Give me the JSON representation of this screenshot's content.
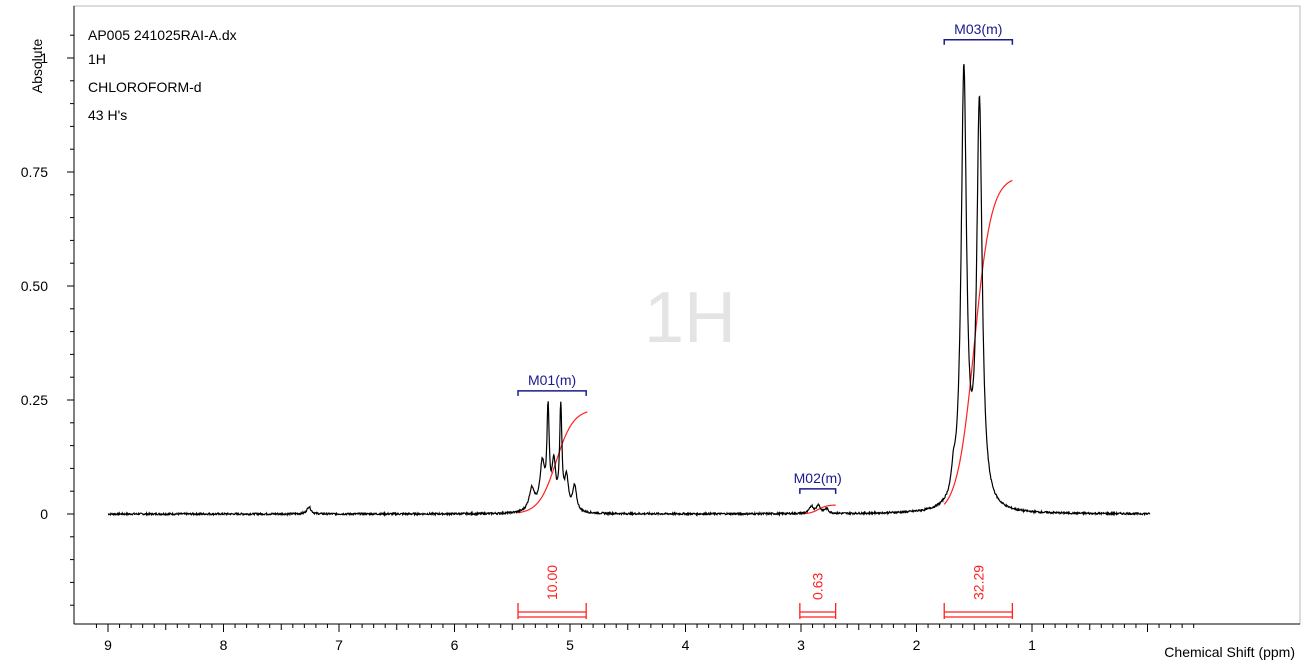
{
  "chart_data": {
    "type": "line",
    "title_lines": [
      "AP005 241025RAI-A.dx",
      "1H",
      "CHLOROFORM-d",
      "43 H's"
    ],
    "watermark": "1H",
    "xlabel": "Chemical Shift (ppm)",
    "ylabel": "Absolute",
    "xlim": [
      9.2,
      -0.3
    ],
    "ylim": [
      -0.25,
      1.1
    ],
    "x_ticks": [
      9,
      8,
      7,
      6,
      5,
      4,
      3,
      2,
      1
    ],
    "y_ticks": [
      {
        "value": 0,
        "label": "0"
      },
      {
        "value": 0.25,
        "label": "0.25"
      },
      {
        "value": 0.5,
        "label": "0.50"
      },
      {
        "value": 0.75,
        "label": "0.75"
      },
      {
        "value": 1,
        "label": "1"
      }
    ],
    "grid": false,
    "colors": {
      "spectrum": "#000000",
      "integral": "#ff2020",
      "multiplet": "#1a1a8c"
    },
    "spectrum_peaks": [
      {
        "x": 7.26,
        "height": 0.016,
        "width": 0.02
      },
      {
        "x": 5.33,
        "height": 0.05,
        "width": 0.03
      },
      {
        "x": 5.24,
        "height": 0.1,
        "width": 0.025
      },
      {
        "x": 5.19,
        "height": 0.21,
        "width": 0.012
      },
      {
        "x": 5.14,
        "height": 0.1,
        "width": 0.02
      },
      {
        "x": 5.08,
        "height": 0.22,
        "width": 0.012
      },
      {
        "x": 5.03,
        "height": 0.07,
        "width": 0.02
      },
      {
        "x": 4.96,
        "height": 0.055,
        "width": 0.02
      },
      {
        "x": 2.91,
        "height": 0.016,
        "width": 0.02
      },
      {
        "x": 2.85,
        "height": 0.018,
        "width": 0.02
      },
      {
        "x": 2.78,
        "height": 0.01,
        "width": 0.02
      },
      {
        "x": 1.68,
        "height": 0.045,
        "width": 0.02
      },
      {
        "x": 1.59,
        "height": 0.95,
        "width": 0.028
      },
      {
        "x": 1.455,
        "height": 0.88,
        "width": 0.028
      }
    ],
    "integral_curves": [
      {
        "x_start": 5.45,
        "x_end": 4.85,
        "center": 5.12,
        "plateau": 0.23
      },
      {
        "x_start": 3.0,
        "x_end": 2.7,
        "center": 2.85,
        "plateau": 0.02
      },
      {
        "x_start": 1.76,
        "x_end": 1.17,
        "center": 1.5,
        "plateau": 0.74
      }
    ],
    "multiplets": [
      {
        "label": "M01(m)",
        "x_start": 5.45,
        "x_end": 4.86,
        "level": 0.27
      },
      {
        "label": "M02(m)",
        "x_start": 3.01,
        "x_end": 2.7,
        "level": 0.055
      },
      {
        "label": "M03(m)",
        "x_start": 1.76,
        "x_end": 1.17,
        "level": 1.04
      }
    ],
    "integrals": [
      {
        "label": "10.00",
        "x_start": 5.45,
        "x_end": 4.86
      },
      {
        "label": "0.63",
        "x_start": 3.01,
        "x_end": 2.7
      },
      {
        "label": "32.29",
        "x_start": 1.76,
        "x_end": 1.17
      }
    ]
  }
}
